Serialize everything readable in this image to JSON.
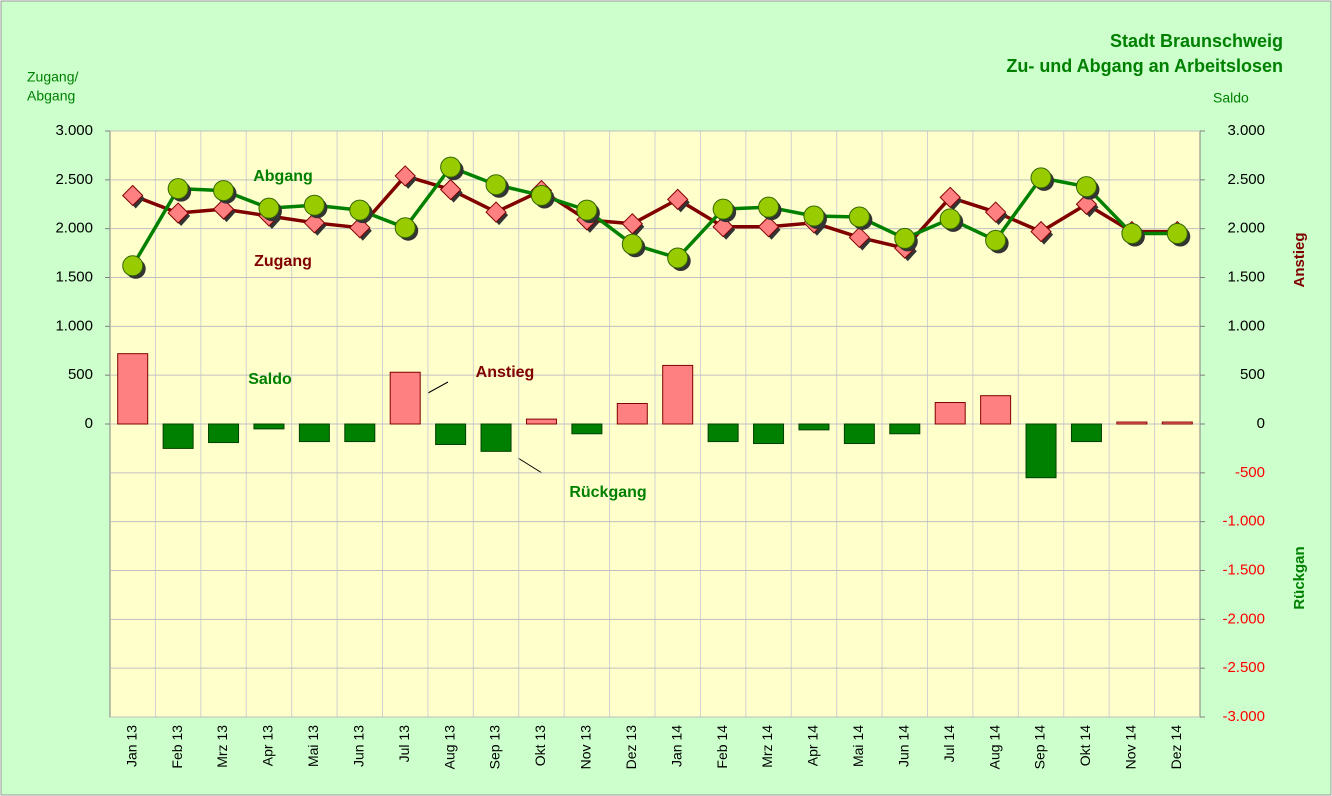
{
  "chart_data": {
    "type": "line_bar",
    "title": [
      "Stadt Braunschweig",
      "Zu- und Abgang an Arbeitslosen"
    ],
    "y_label": [
      "Zugang/",
      "Abgang"
    ],
    "y2_label": "Saldo",
    "y2_side_labels": [
      "Anstieg",
      "Rückgan"
    ],
    "categories": [
      "Jan 13",
      "Feb 13",
      "Mrz 13",
      "Apr 13",
      "Mai 13",
      "Jun 13",
      "Jul 13",
      "Aug 13",
      "Sep 13",
      "Okt 13",
      "Nov 13",
      "Dez 13",
      "Jan 14",
      "Feb 14",
      "Mrz 14",
      "Apr 14",
      "Mai 14",
      "Jun 14",
      "Jul 14",
      "Aug 14",
      "Sep 14",
      "Okt 14",
      "Nov 14",
      "Dez 14"
    ],
    "series": [
      {
        "name": "Zugang",
        "color": "#800000",
        "marker_color": "#ff8080",
        "marker": "diamond",
        "values": [
          2340,
          2160,
          2200,
          2130,
          2060,
          2010,
          2540,
          2400,
          2170,
          2390,
          2090,
          2050,
          2300,
          2020,
          2020,
          2060,
          1910,
          1800,
          2320,
          2170,
          1970,
          2250,
          1970,
          1970
        ]
      },
      {
        "name": "Abgang",
        "color": "#008000",
        "marker_color": "#99cc00",
        "marker": "circle",
        "values": [
          1620,
          2410,
          2390,
          2210,
          2240,
          2190,
          2010,
          2630,
          2450,
          2340,
          2190,
          1840,
          1700,
          2200,
          2220,
          2130,
          2120,
          1900,
          2100,
          1880,
          2520,
          2430,
          1950,
          1950
        ]
      },
      {
        "name": "Saldo",
        "axis": "y2",
        "kind": "bar",
        "color": "#008000",
        "positive_color": "#ff8080",
        "negative_color": "#008000",
        "values": [
          720,
          -250,
          -190,
          -50,
          -180,
          -180,
          530,
          -210,
          -280,
          50,
          -100,
          210,
          600,
          -180,
          -200,
          -60,
          -200,
          -100,
          220,
          290,
          -550,
          -180,
          20,
          20
        ]
      }
    ],
    "annotations": [
      "Anstieg",
      "Rückgang"
    ],
    "ylim": [
      -3000,
      3000
    ],
    "yticks": [
      0,
      500,
      {
        "value": 1000,
        "label": "1.000"
      },
      {
        "value": 1500,
        "label": "1.500"
      },
      {
        "value": 2000,
        "label": "2.000"
      },
      {
        "value": 2500,
        "label": "2.500"
      },
      {
        "value": 3000,
        "label": "3.000"
      }
    ],
    "y2lim": [
      -3000,
      3000
    ],
    "y2ticks": [
      {
        "value": -3000,
        "label": "-3.000"
      },
      {
        "value": -2500,
        "label": "-2.500"
      },
      {
        "value": -2000,
        "label": "-2.000"
      },
      {
        "value": -1500,
        "label": "-1.500"
      },
      {
        "value": -1000,
        "label": "-1.000"
      },
      -500,
      0,
      500,
      {
        "value": 1000,
        "label": "1.000"
      },
      {
        "value": 1500,
        "label": "1.500"
      },
      {
        "value": 2000,
        "label": "2.000"
      },
      {
        "value": 2500,
        "label": "2.500"
      },
      {
        "value": 3000,
        "label": "3.000"
      }
    ],
    "grid": true
  }
}
